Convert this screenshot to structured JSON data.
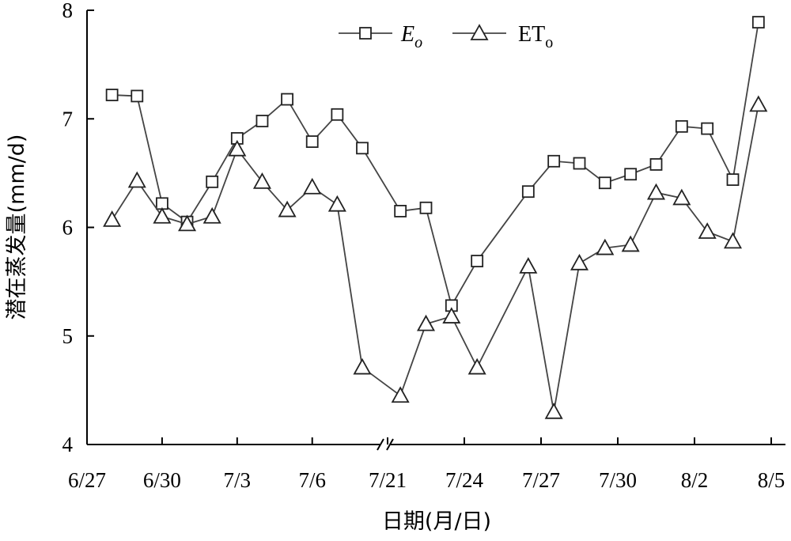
{
  "chart_data": {
    "type": "line",
    "xlabel": "日期(月/日)",
    "ylabel": "潜在蒸发量(mm/d)",
    "ylim": [
      4,
      8
    ],
    "yticks": [
      "4",
      "5",
      "6",
      "7",
      "8"
    ],
    "axis_break": "between 7/6 and 7/21",
    "xtick_labels": [
      "6/27",
      "6/30",
      "7/3",
      "7/6",
      "7/21",
      "7/24",
      "7/27",
      "7/30",
      "8/2",
      "8/5"
    ],
    "x": [
      "6/28",
      "6/29",
      "6/30",
      "7/1",
      "7/2",
      "7/3",
      "7/4",
      "7/5",
      "7/6",
      "7/7",
      "7/8",
      "7/21.5",
      "7/22.5",
      "7/23.5",
      "7/24.5",
      "7/26.5",
      "7/27.5",
      "7/28.5",
      "7/29.5",
      "7/30.5",
      "7/31.5",
      "8/1.5",
      "8/2.5",
      "8/3.5",
      "8/4.5"
    ],
    "series": [
      {
        "name": "Eo",
        "name_main": "E",
        "name_sub": "o",
        "marker": "square",
        "values": [
          7.22,
          7.21,
          6.22,
          6.05,
          6.42,
          6.82,
          6.98,
          7.18,
          6.79,
          7.04,
          6.73,
          6.15,
          6.18,
          5.28,
          5.69,
          6.33,
          6.61,
          6.59,
          6.41,
          6.49,
          6.58,
          6.93,
          6.91,
          6.44,
          7.89
        ]
      },
      {
        "name": "ETo",
        "name_main": "ET",
        "name_sub": "o",
        "marker": "triangle",
        "values": [
          6.07,
          6.43,
          6.1,
          6.03,
          6.1,
          6.72,
          6.42,
          6.16,
          6.37,
          6.21,
          4.71,
          4.45,
          5.11,
          5.18,
          4.71,
          5.64,
          4.3,
          5.67,
          5.81,
          5.84,
          6.32,
          6.27,
          5.96,
          5.87,
          7.13
        ]
      }
    ],
    "legend_position": "top-center",
    "grid": false
  }
}
